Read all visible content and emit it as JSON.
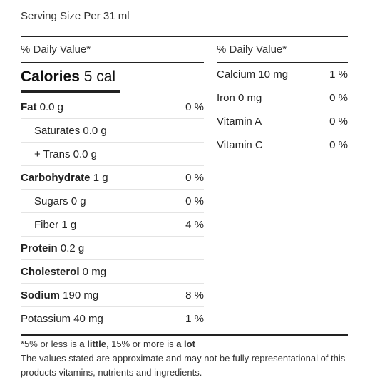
{
  "serving": "Serving Size Per 31 ml",
  "left": {
    "header": "% Daily Value*",
    "calories": {
      "label": "Calories",
      "value": "5 cal"
    },
    "rows": [
      {
        "bold": "Fat",
        "text": " 0.0 g",
        "pct": "0 %"
      },
      {
        "bold": "",
        "text": "Saturates 0.0 g",
        "pct": ""
      },
      {
        "bold": "",
        "text": "+ Trans 0.0 g",
        "pct": ""
      },
      {
        "bold": "Carbohydrate",
        "text": " 1 g",
        "pct": "0 %"
      },
      {
        "bold": "",
        "text": "Sugars 0 g",
        "pct": "0 %"
      },
      {
        "bold": "",
        "text": "Fiber 1 g",
        "pct": "4 %"
      },
      {
        "bold": "Protein",
        "text": " 0.2 g",
        "pct": ""
      },
      {
        "bold": "Cholesterol",
        "text": " 0 mg",
        "pct": ""
      },
      {
        "bold": "Sodium",
        "text": " 190 mg",
        "pct": "8 %"
      },
      {
        "bold": "",
        "text": "Potassium 40 mg",
        "pct": "1 %"
      }
    ]
  },
  "right": {
    "header": "% Daily Value*",
    "rows": [
      {
        "label": "Calcium 10 mg",
        "pct": "1 %"
      },
      {
        "label": "Iron 0 mg",
        "pct": "0 %"
      },
      {
        "label": "Vitamin A",
        "pct": "0 %"
      },
      {
        "label": "Vitamin C",
        "pct": "0 %"
      }
    ]
  },
  "footnote": {
    "p1": "*5% or less is ",
    "b1": "a little",
    "p2": ", 15% or more is ",
    "b2": "a lot",
    "disclaimer": "The values stated are approximate and may not be fully representational of this products vitamins, nutrients and ingredients."
  }
}
